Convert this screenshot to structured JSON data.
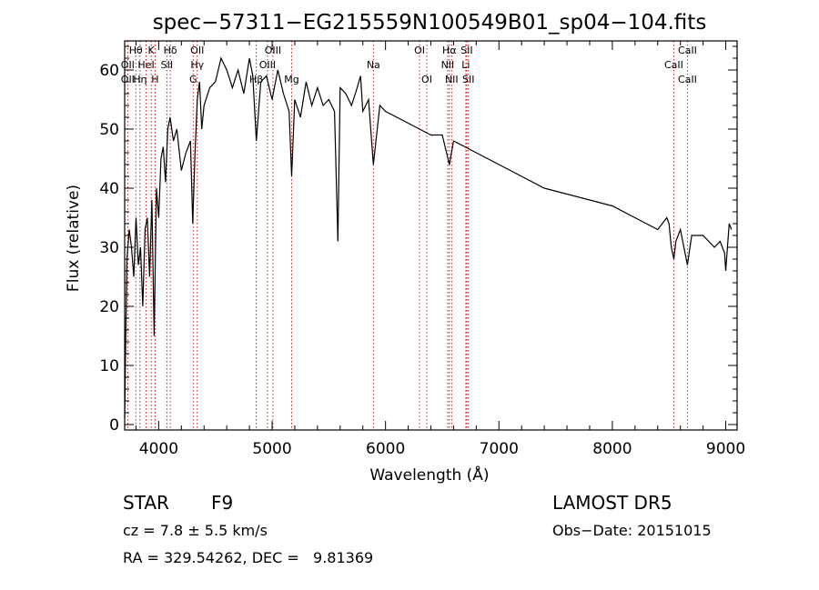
{
  "chart_data": {
    "type": "line",
    "title": "spec−57311−EG215559N100549B01_sp04−104.fits",
    "xlabel": "Wavelength (Å)",
    "ylabel": "Flux (relative)",
    "xlim": [
      3700,
      9100
    ],
    "ylim": [
      0,
      65
    ],
    "xticks": [
      4000,
      5000,
      6000,
      7000,
      8000,
      9000
    ],
    "yticks": [
      0,
      10,
      20,
      30,
      40,
      50,
      60
    ],
    "grid": false,
    "series": [
      {
        "name": "",
        "x": [
          3700,
          3710,
          3720,
          3740,
          3760,
          3780,
          3800,
          3820,
          3840,
          3860,
          3880,
          3900,
          3920,
          3940,
          3960,
          3980,
          4000,
          4020,
          4040,
          4060,
          4080,
          4100,
          4130,
          4160,
          4200,
          4240,
          4280,
          4300,
          4320,
          4340,
          4360,
          4380,
          4400,
          4450,
          4500,
          4550,
          4600,
          4650,
          4700,
          4750,
          4800,
          4830,
          4861,
          4900,
          4950,
          5000,
          5050,
          5100,
          5150,
          5172,
          5200,
          5250,
          5300,
          5350,
          5400,
          5450,
          5500,
          5550,
          5580,
          5600,
          5650,
          5700,
          5750,
          5780,
          5800,
          5850,
          5893,
          5950,
          6000,
          6100,
          6200,
          6300,
          6400,
          6500,
          6563,
          6600,
          6700,
          6800,
          6900,
          7000,
          7200,
          7400,
          7600,
          7800,
          8000,
          8200,
          8400,
          8480,
          8500,
          8520,
          8542,
          8560,
          8600,
          8662,
          8700,
          8800,
          8900,
          8950,
          8990,
          9000,
          9030,
          9050
        ],
        "y": [
          1,
          15,
          28,
          33,
          30,
          25,
          35,
          27,
          30,
          20,
          33,
          35,
          25,
          38,
          15,
          40,
          35,
          45,
          47,
          41,
          50,
          52,
          48,
          50,
          43,
          46,
          48,
          34,
          46,
          55,
          58,
          50,
          54,
          57,
          58,
          62,
          60,
          57,
          60,
          56,
          62,
          59,
          48,
          58,
          59,
          55,
          60,
          56,
          53,
          42,
          55,
          52,
          58,
          54,
          57,
          54,
          55,
          53,
          31,
          57,
          56,
          54,
          57,
          59,
          53,
          55,
          44,
          54,
          53,
          52,
          51,
          50,
          49,
          49,
          44,
          48,
          47,
          46,
          45,
          44,
          42,
          40,
          39,
          38,
          37,
          35,
          33,
          35,
          34,
          30,
          28,
          31,
          33,
          27,
          32,
          32,
          30,
          31,
          29,
          26,
          34,
          33
        ]
      }
    ],
    "line_markers": [
      {
        "label": "Hθ",
        "wavelength": 3798,
        "row": 1
      },
      {
        "label": "K",
        "wavelength": 3934,
        "row": 1
      },
      {
        "label": "Hδ",
        "wavelength": 4102,
        "row": 1
      },
      {
        "label": "OII",
        "wavelength": 4340,
        "row": 1
      },
      {
        "label": "OIII",
        "wavelength": 5007,
        "row": 1
      },
      {
        "label": "OI",
        "wavelength": 6300,
        "row": 1
      },
      {
        "label": "Hα",
        "wavelength": 6563,
        "row": 1
      },
      {
        "label": "SII",
        "wavelength": 6716,
        "row": 1
      },
      {
        "label": "CaII",
        "wavelength": 8662,
        "row": 1
      },
      {
        "label": "OII",
        "wavelength": 3727,
        "row": 2
      },
      {
        "label": "HeI",
        "wavelength": 3889,
        "row": 2
      },
      {
        "label": "SII",
        "wavelength": 4072,
        "row": 2
      },
      {
        "label": "Hγ",
        "wavelength": 4340,
        "row": 2
      },
      {
        "label": "OIII",
        "wavelength": 4959,
        "row": 2
      },
      {
        "label": "Na",
        "wavelength": 5893,
        "row": 2
      },
      {
        "label": "NII",
        "wavelength": 6548,
        "row": 2
      },
      {
        "label": "Li",
        "wavelength": 6708,
        "row": 2
      },
      {
        "label": "CaII",
        "wavelength": 8542,
        "row": 2
      },
      {
        "label": "OII",
        "wavelength": 3727,
        "row": 3
      },
      {
        "label": "Hη",
        "wavelength": 3835,
        "row": 3
      },
      {
        "label": "H",
        "wavelength": 3968,
        "row": 3
      },
      {
        "label": "G",
        "wavelength": 4304,
        "row": 3
      },
      {
        "label": "Hβ",
        "wavelength": 4861,
        "row": 3
      },
      {
        "label": "Mg",
        "wavelength": 5172,
        "row": 3
      },
      {
        "label": "OI",
        "wavelength": 6364,
        "row": 3
      },
      {
        "label": "NII",
        "wavelength": 6583,
        "row": 3
      },
      {
        "label": "SII",
        "wavelength": 6731,
        "row": 3
      },
      {
        "label": "CaII",
        "wavelength": 8662,
        "row": 3
      }
    ],
    "marker_color": "#cc0000"
  },
  "footer": {
    "class_label": "STAR",
    "subclass": "F9",
    "survey": "LAMOST DR5",
    "cz": "cz = 7.8 ± 5.5 km/s",
    "obs_date": "Obs−Date: 20151015",
    "coords": "RA = 329.54262, DEC =   9.81369"
  }
}
